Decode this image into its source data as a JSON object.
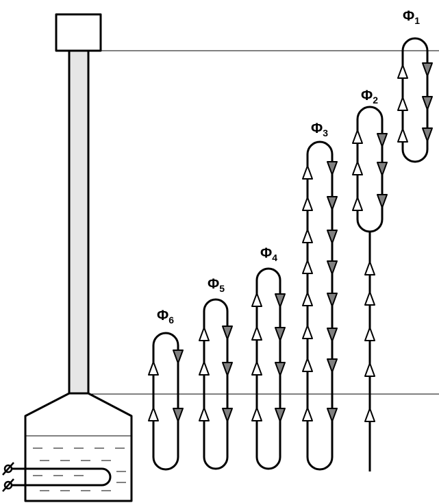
{
  "loops": [
    {
      "symbol": "Φ",
      "index": "1",
      "label": "Φ1"
    },
    {
      "symbol": "Φ",
      "index": "2",
      "label": "Φ2"
    },
    {
      "symbol": "Φ",
      "index": "3",
      "label": "Φ3"
    },
    {
      "symbol": "Φ",
      "index": "4",
      "label": "Φ4"
    },
    {
      "symbol": "Φ",
      "index": "5",
      "label": "Φ5"
    },
    {
      "symbol": "Φ",
      "index": "6",
      "label": "Φ6"
    }
  ],
  "colors": {
    "line": "#000000",
    "up_arrow": "#ffffff",
    "down_arrow": "#808080",
    "column_fill": "#e6e6e6",
    "background": "#ffffff"
  }
}
